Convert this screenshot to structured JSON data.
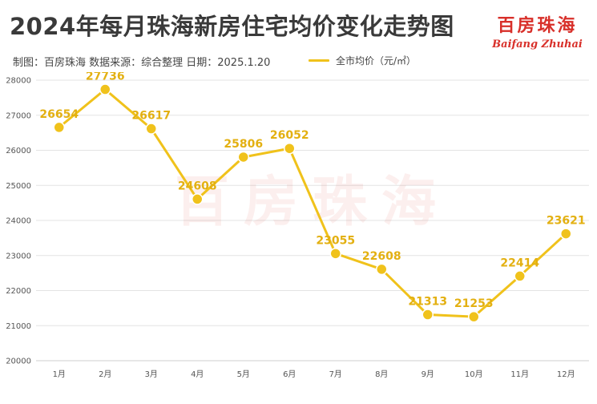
{
  "header": {
    "title": "2024年每月珠海新房住宅均价变化走势图",
    "meta": "制图：百房珠海  数据来源：综合整理  日期：2025.1.20",
    "brand_cn": "百房珠海",
    "brand_en": "Baifang Zhuhai"
  },
  "watermark": "百房珠海",
  "colors": {
    "line": "#f0c21b",
    "label": "#e3b011",
    "brand": "#d8302a"
  },
  "chart_data": {
    "type": "line",
    "categories": [
      "1月",
      "2月",
      "3月",
      "4月",
      "5月",
      "6月",
      "7月",
      "8月",
      "9月",
      "10月",
      "11月",
      "12月"
    ],
    "series": [
      {
        "name": "全市均价（元/㎡）",
        "values": [
          26654,
          27736,
          26617,
          24608,
          25806,
          26052,
          23055,
          22608,
          21313,
          21253,
          22414,
          23621
        ]
      }
    ],
    "ylim": [
      20000,
      28000
    ],
    "yticks": [
      20000,
      21000,
      22000,
      23000,
      24000,
      25000,
      26000,
      27000,
      28000
    ],
    "grid": true,
    "legend_position": "top"
  }
}
